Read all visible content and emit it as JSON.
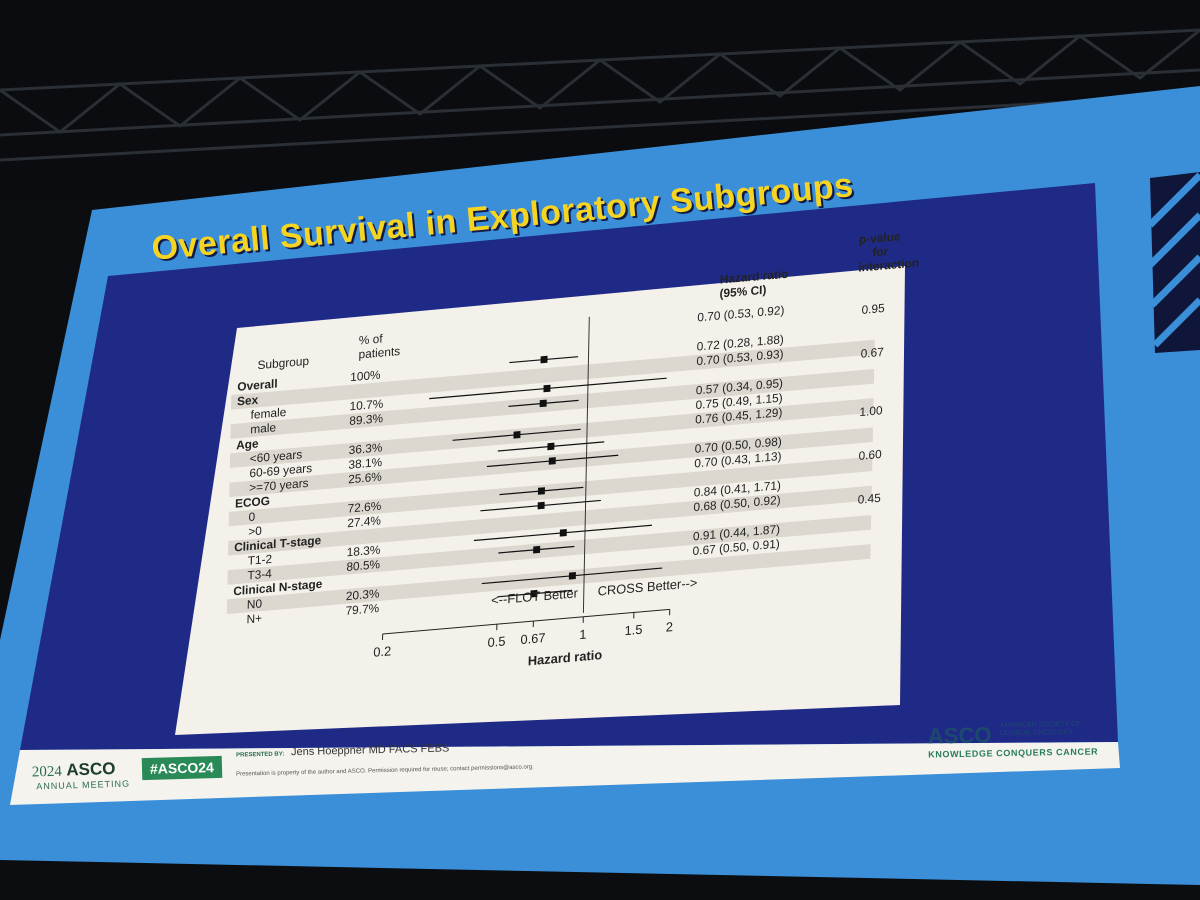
{
  "slide": {
    "title": "Overall Survival in Exploratory Subgroups"
  },
  "chart_data": {
    "type": "forest",
    "columns": {
      "subgroup": "Subgroup",
      "pct": "% of\npatients",
      "hr": "Hazard ratio\n(95% CI)",
      "p": "p-value\nfor\ninteraction"
    },
    "rows": [
      {
        "label": "Overall",
        "header": true,
        "pct": "100%",
        "hr": 0.7,
        "lo": 0.53,
        "hi": 0.92,
        "hr_text": "0.70 (0.53, 0.92)"
      },
      {
        "label": "Sex",
        "header": true,
        "p": "0.95"
      },
      {
        "label": "female",
        "pct": "10.7%",
        "hr": 0.72,
        "lo": 0.28,
        "hi": 1.88,
        "hr_text": "0.72 (0.28, 1.88)"
      },
      {
        "label": "male",
        "pct": "89.3%",
        "hr": 0.7,
        "lo": 0.53,
        "hi": 0.93,
        "hr_text": "0.70 (0.53, 0.93)"
      },
      {
        "label": "Age",
        "header": true,
        "p": "0.67"
      },
      {
        "label": "<60 years",
        "pct": "36.3%",
        "hr": 0.57,
        "lo": 0.34,
        "hi": 0.95,
        "hr_text": "0.57 (0.34, 0.95)"
      },
      {
        "label": "60-69 years",
        "pct": "38.1%",
        "hr": 0.75,
        "lo": 0.49,
        "hi": 1.15,
        "hr_text": "0.75 (0.49, 1.15)"
      },
      {
        "label": ">=70 years",
        "pct": "25.6%",
        "hr": 0.76,
        "lo": 0.45,
        "hi": 1.29,
        "hr_text": "0.76 (0.45, 1.29)"
      },
      {
        "label": "ECOG",
        "header": true,
        "p": "1.00"
      },
      {
        "label": "0",
        "pct": "72.6%",
        "hr": 0.7,
        "lo": 0.5,
        "hi": 0.98,
        "hr_text": "0.70 (0.50, 0.98)"
      },
      {
        "label": ">0",
        "pct": "27.4%",
        "hr": 0.7,
        "lo": 0.43,
        "hi": 1.13,
        "hr_text": "0.70 (0.43, 1.13)"
      },
      {
        "label": "Clinical T-stage",
        "header": true,
        "p": "0.60"
      },
      {
        "label": "T1-2",
        "pct": "18.3%",
        "hr": 0.84,
        "lo": 0.41,
        "hi": 1.71,
        "hr_text": "0.84 (0.41, 1.71)"
      },
      {
        "label": "T3-4",
        "pct": "80.5%",
        "hr": 0.68,
        "lo": 0.5,
        "hi": 0.92,
        "hr_text": "0.68 (0.50, 0.92)"
      },
      {
        "label": "Clinical N-stage",
        "header": true,
        "p": "0.45"
      },
      {
        "label": "N0",
        "pct": "20.3%",
        "hr": 0.91,
        "lo": 0.44,
        "hi": 1.87,
        "hr_text": "0.91 (0.44, 1.87)"
      },
      {
        "label": "N+",
        "pct": "79.7%",
        "hr": 0.67,
        "lo": 0.5,
        "hi": 0.91,
        "hr_text": "0.67 (0.50, 0.91)"
      }
    ],
    "x_axis": {
      "label": "Hazard ratio",
      "scale": "log",
      "ticks": [
        0.2,
        0.5,
        0.67,
        1,
        1.5,
        2
      ],
      "tick_labels": [
        "0.2",
        "0.5",
        "0.67",
        "1",
        "1.5",
        "2"
      ],
      "range": [
        0.2,
        2
      ],
      "reference_line": 1
    },
    "annotations": {
      "left": "<--FLOT Better",
      "right": "CROSS Better-->"
    }
  },
  "footer": {
    "meeting_year": "2024",
    "meeting_name": "ASCO",
    "meeting_sub": "ANNUAL MEETING",
    "hashtag": "#ASCO24",
    "presented_by_label": "PRESENTED BY:",
    "presenter": "Jens Hoeppner MD FACS FEBS",
    "disclaimer": "Presentation is property of the author and ASCO. Permission required for reuse; contact permissions@asco.org.",
    "asco_logo": "ASCO",
    "asco_full_1": "AMERICAN SOCIETY OF",
    "asco_full_2": "CLINICAL ONCOLOGY",
    "tagline": "KNOWLEDGE CONQUERS CANCER"
  },
  "colors": {
    "screen_blue": "#3a8fd8",
    "slide_navy": "#1f2a86",
    "title_yellow": "#f5d422",
    "panel": "#f4f1ea",
    "asco_green": "#2a8a57"
  }
}
